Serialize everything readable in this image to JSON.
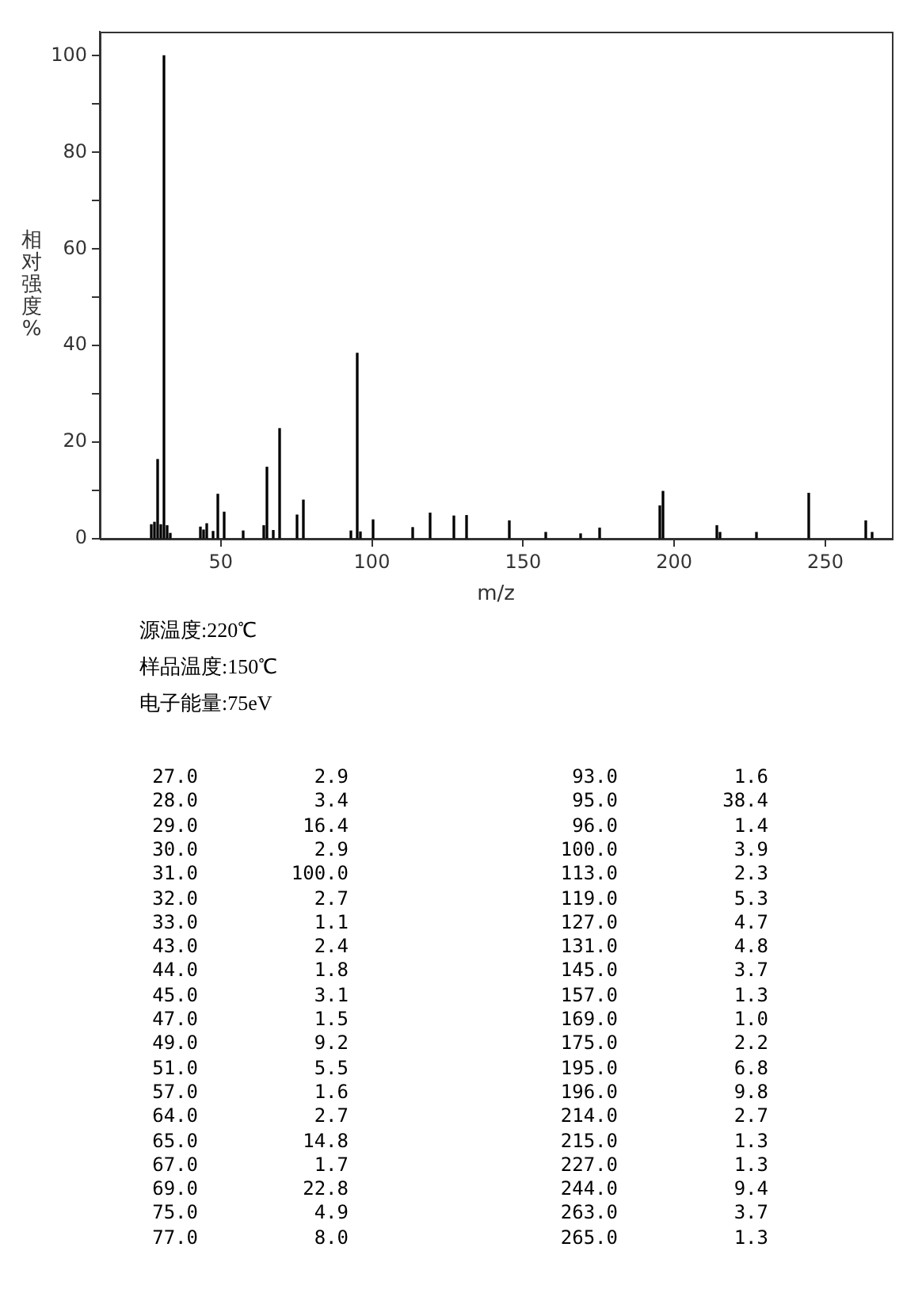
{
  "chart_data": [
    {
      "type": "bar",
      "xlabel": "m/z",
      "ylabel": "相对强度%",
      "x": [
        27,
        28,
        29,
        30,
        31,
        32,
        33,
        43,
        44,
        45,
        47,
        49,
        51,
        57,
        64,
        65,
        67,
        69,
        75,
        77,
        93,
        95,
        96,
        100,
        113,
        119,
        127,
        131,
        145,
        157,
        169,
        175,
        195,
        196,
        214,
        215,
        227,
        244,
        263,
        265
      ],
      "values": [
        2.9,
        3.4,
        16.4,
        2.9,
        100,
        2.7,
        1.1,
        2.4,
        1.8,
        3.1,
        1.5,
        9.2,
        5.5,
        1.6,
        2.7,
        14.8,
        1.7,
        22.8,
        4.9,
        8.0,
        1.6,
        38.4,
        1.4,
        3.9,
        2.3,
        5.3,
        4.7,
        4.8,
        3.7,
        1.3,
        1.0,
        2.2,
        6.8,
        9.8,
        2.7,
        1.3,
        1.3,
        9.4,
        3.7,
        1.3
      ],
      "color": "#000000",
      "xlim": [
        10,
        272
      ],
      "xticks": [
        50,
        100,
        150,
        200,
        250
      ],
      "ylim": [
        0,
        105
      ],
      "yticks": [
        0,
        {
          "value": 10,
          "label": null
        },
        20,
        {
          "value": 30,
          "label": null
        },
        40,
        {
          "value": 50,
          "label": null
        },
        60,
        {
          "value": 70,
          "label": null
        },
        80,
        {
          "value": 90,
          "label": null
        },
        100
      ],
      "grid": false,
      "legend": false,
      "annotations": [
        "源温度:220℃",
        "样品温度:150℃",
        "电子能量:75eV"
      ]
    },
    {
      "type": "other",
      "annotations": [
        "27.0",
        "2.9",
        "28.0",
        "3.4",
        "29.0",
        "16.4",
        "30.0",
        "2.9",
        "31.0",
        "100.0",
        "32.0",
        "2.7",
        "33.0",
        "1.1",
        "43.0",
        "2.4",
        "44.0",
        "1.8",
        "45.0",
        "3.1",
        "47.0",
        "1.5",
        "49.0",
        "9.2",
        "51.0",
        "5.5",
        "57.0",
        "1.6",
        "64.0",
        "2.7",
        "65.0",
        "14.8",
        "67.0",
        "1.7",
        "69.0",
        "22.8",
        "75.0",
        "4.9",
        "77.0",
        "8.0",
        "93.0",
        "1.6",
        "95.0",
        "38.4",
        "96.0",
        "1.4",
        "100.0",
        "3.9",
        "113.0",
        "2.3",
        "119.0",
        "5.3",
        "127.0",
        "4.7",
        "131.0",
        "4.8",
        "145.0",
        "3.7",
        "157.0",
        "1.3",
        "169.0",
        "1.0",
        "175.0",
        "2.2",
        "195.0",
        "6.8",
        "196.0",
        "9.8",
        "214.0",
        "2.7",
        "215.0",
        "1.3",
        "227.0",
        "1.3",
        "244.0",
        "9.4",
        "263.0",
        "3.7",
        "265.0",
        "1.3"
      ]
    }
  ]
}
